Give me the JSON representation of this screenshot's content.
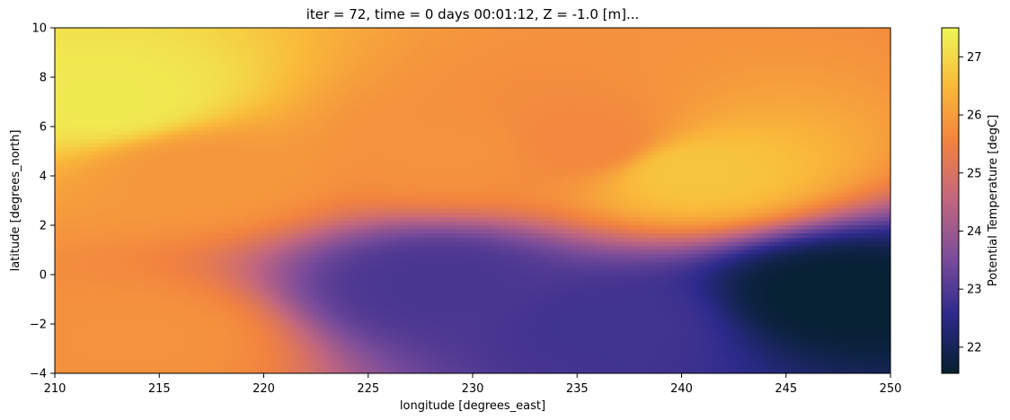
{
  "chart_data": {
    "type": "heatmap",
    "title": "iter = 72, time = 0 days 00:01:12, Z = -1.0 [m]...",
    "xlabel": "longitude [degrees_east]",
    "ylabel": "latitude [degrees_north]",
    "xlim": [
      210,
      250
    ],
    "ylim": [
      -4,
      10
    ],
    "xticks": [
      "210",
      "215",
      "220",
      "225",
      "230",
      "235",
      "240",
      "245",
      "250"
    ],
    "yticks": [
      "−4",
      "−2",
      "0",
      "2",
      "4",
      "6",
      "8",
      "10"
    ],
    "colorbar": {
      "label": "Potential Temperature [degC]",
      "range": [
        21.55,
        27.5
      ],
      "ticks": [
        "22",
        "23",
        "24",
        "25",
        "26",
        "27"
      ],
      "colormap": "thermal",
      "colors": [
        "#04202d",
        "#2d2a8c",
        "#7a4c9a",
        "#c06680",
        "#f2823f",
        "#f9b93a",
        "#eef657"
      ]
    },
    "field_features": [
      {
        "lon": 212.5,
        "lat": 7.0,
        "value": 27.3,
        "feature": "warm band along northern edge"
      },
      {
        "lon": 217.0,
        "lat": 4.2,
        "value": 25.9,
        "feature": "warm eddy core"
      },
      {
        "lon": 229.0,
        "lat": 5.0,
        "value": 25.8,
        "feature": "warm eddy core"
      },
      {
        "lon": 235.5,
        "lat": 5.3,
        "value": 25.6,
        "feature": "warm eddy core"
      },
      {
        "lon": 240.5,
        "lat": 4.2,
        "value": 26.7,
        "feature": "warm filament"
      },
      {
        "lon": 228.5,
        "lat": -0.4,
        "value": 22.9,
        "feature": "cool tongue"
      },
      {
        "lon": 236.5,
        "lat": -2.0,
        "value": 22.8,
        "feature": "cool tongue"
      },
      {
        "lon": 247.5,
        "lat": -0.8,
        "value": 21.6,
        "feature": "coldest region"
      },
      {
        "lon": 214.0,
        "lat": -2.6,
        "value": 25.8,
        "feature": "warm southern margin"
      }
    ]
  }
}
